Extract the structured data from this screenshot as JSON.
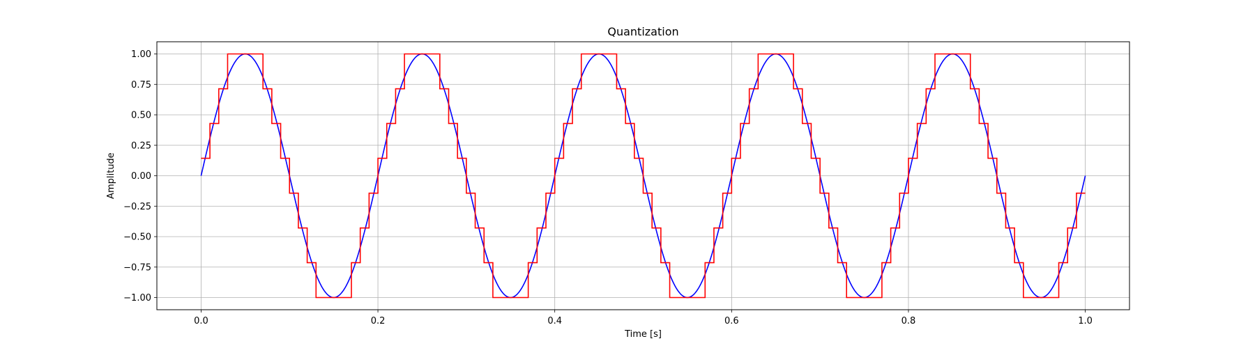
{
  "chart_data": {
    "type": "line",
    "title": "Quantization",
    "xlabel": "Time [s]",
    "ylabel": "Amplitude",
    "xlim": [
      -0.05,
      1.05
    ],
    "ylim": [
      -1.1,
      1.1
    ],
    "grid": true,
    "x_ticks": [
      0.0,
      0.2,
      0.4,
      0.6,
      0.8,
      1.0
    ],
    "x_tick_labels": [
      "0.0",
      "0.2",
      "0.4",
      "0.6",
      "0.8",
      "1.0"
    ],
    "y_ticks": [
      1.0,
      0.75,
      0.5,
      0.25,
      0.0,
      -0.25,
      -0.5,
      -0.75,
      -1.0
    ],
    "y_tick_labels": [
      "1.00",
      "0.75",
      "0.50",
      "0.25",
      "0.00",
      "−0.25",
      "−0.50",
      "−0.75",
      "−1.00"
    ],
    "series": [
      {
        "style": "line",
        "color": "#0000ff",
        "function": "sin",
        "frequency_hz": 5,
        "amplitude": 1.0,
        "x_range": [
          0.0,
          1.0
        ]
      },
      {
        "style": "step",
        "color": "#ff0000",
        "sample_period_s": 0.01,
        "x_range": [
          0.0,
          1.0
        ],
        "levels": [
          -1.0,
          -0.714,
          -0.429,
          -0.143,
          0.143,
          0.429,
          0.714,
          1.0
        ],
        "values": [
          0.143,
          0.429,
          0.714,
          1.0,
          1.0,
          1.0,
          1.0,
          0.714,
          0.429,
          0.143,
          -0.143,
          -0.429,
          -0.714,
          -1.0,
          -1.0,
          -1.0,
          -1.0,
          -0.714,
          -0.429,
          -0.143,
          0.143,
          0.429,
          0.714,
          1.0,
          1.0,
          1.0,
          1.0,
          0.714,
          0.429,
          0.143,
          -0.143,
          -0.429,
          -0.714,
          -1.0,
          -1.0,
          -1.0,
          -1.0,
          -0.714,
          -0.429,
          -0.143,
          0.143,
          0.429,
          0.714,
          1.0,
          1.0,
          1.0,
          1.0,
          0.714,
          0.429,
          0.143,
          -0.143,
          -0.429,
          -0.714,
          -1.0,
          -1.0,
          -1.0,
          -1.0,
          -0.714,
          -0.429,
          -0.143,
          0.143,
          0.429,
          0.714,
          1.0,
          1.0,
          1.0,
          1.0,
          0.714,
          0.429,
          0.143,
          -0.143,
          -0.429,
          -0.714,
          -1.0,
          -1.0,
          -1.0,
          -1.0,
          -0.714,
          -0.429,
          -0.143,
          0.143,
          0.429,
          0.714,
          1.0,
          1.0,
          1.0,
          1.0,
          0.714,
          0.429,
          0.143,
          -0.143,
          -0.429,
          -0.714,
          -1.0,
          -1.0,
          -1.0,
          -1.0,
          -0.714,
          -0.429,
          -0.143,
          -0.143
        ]
      }
    ]
  }
}
